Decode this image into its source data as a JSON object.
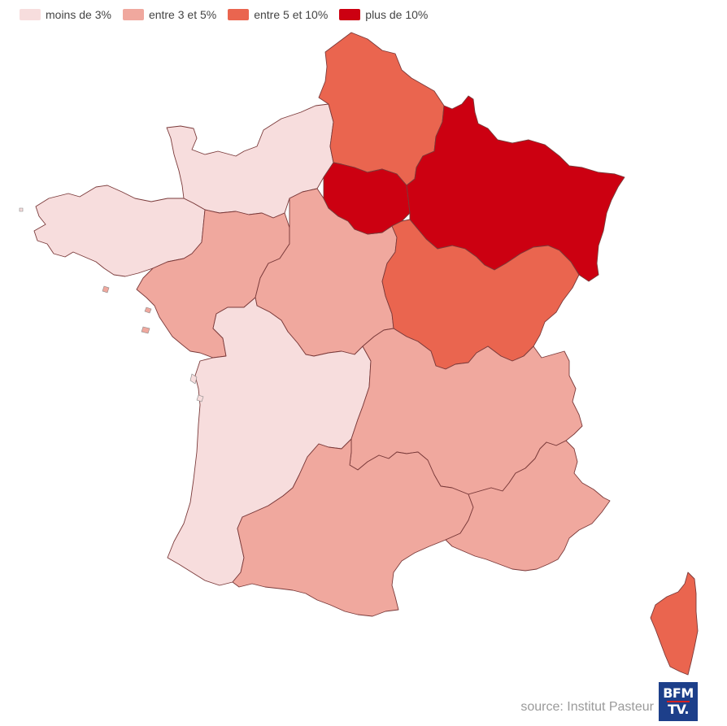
{
  "legend": {
    "items": [
      {
        "label": "moins de 3%",
        "color": "#f7dddd"
      },
      {
        "label": "entre 3 et 5%",
        "color": "#f0a89e"
      },
      {
        "label": "entre 5 et 10%",
        "color": "#ea654f"
      },
      {
        "label": "plus de 10%",
        "color": "#cc0011"
      }
    ]
  },
  "regions": [
    {
      "name": "Normandie",
      "class": "moins de 3%"
    },
    {
      "name": "Bretagne",
      "class": "moins de 3%"
    },
    {
      "name": "Nouvelle-Aquitaine",
      "class": "moins de 3%"
    },
    {
      "name": "Pays de la Loire",
      "class": "entre 3 et 5%"
    },
    {
      "name": "Centre-Val de Loire",
      "class": "entre 3 et 5%"
    },
    {
      "name": "Auvergne-Rhône-Alpes",
      "class": "entre 3 et 5%"
    },
    {
      "name": "Occitanie",
      "class": "entre 3 et 5%"
    },
    {
      "name": "Provence-Alpes-Côte d'Azur",
      "class": "entre 3 et 5%"
    },
    {
      "name": "Hauts-de-France",
      "class": "entre 5 et 10%"
    },
    {
      "name": "Bourgogne-Franche-Comté",
      "class": "entre 5 et 10%"
    },
    {
      "name": "Corse",
      "class": "entre 5 et 10%"
    },
    {
      "name": "Île-de-France",
      "class": "plus de 10%"
    },
    {
      "name": "Grand Est",
      "class": "plus de 10%"
    }
  ],
  "source": "source: Institut Pasteur",
  "logo": {
    "line1": "BFM",
    "line2": "TV."
  }
}
